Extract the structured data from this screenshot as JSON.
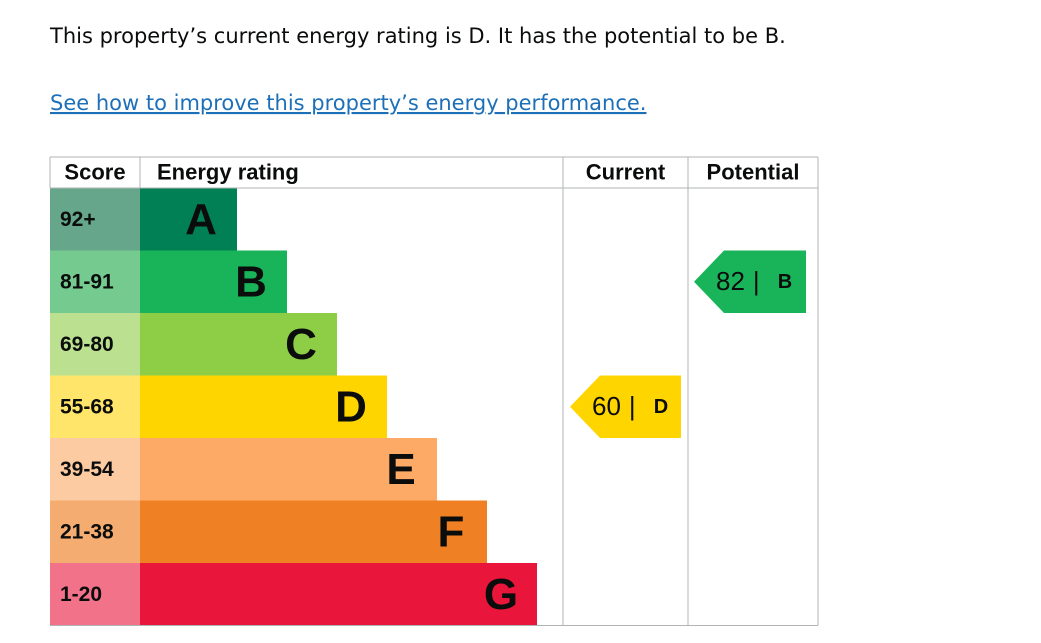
{
  "intro": "This property’s current energy rating is D. It has the potential to be B.",
  "link": "See how to improve this property’s energy performance.",
  "table": {
    "headers": [
      "Score",
      "Energy rating",
      "Current",
      "Potential"
    ],
    "rows": [
      {
        "score": "92+",
        "rating": "A",
        "color": "#008054",
        "score_color": "#66a78b"
      },
      {
        "score": "81-91",
        "rating": "B",
        "color": "#19b459",
        "score_color": "#75ca8f"
      },
      {
        "score": "69-80",
        "rating": "C",
        "color": "#8dce46",
        "score_color": "#bbe190"
      },
      {
        "score": "55-68",
        "rating": "D",
        "color": "#ffd500",
        "score_color": "#ffe56a"
      },
      {
        "score": "39-54",
        "rating": "E",
        "color": "#fcaa65",
        "score_color": "#fdcba1"
      },
      {
        "score": "21-38",
        "rating": "F",
        "color": "#ef8023",
        "score_color": "#f4ac71"
      },
      {
        "score": "1-20",
        "rating": "G",
        "color": "#e9153b",
        "score_color": "#f27289"
      }
    ],
    "separator": "|",
    "current": {
      "value": 60,
      "rating": "D"
    },
    "potential": {
      "value": 82,
      "rating": "B"
    }
  }
}
